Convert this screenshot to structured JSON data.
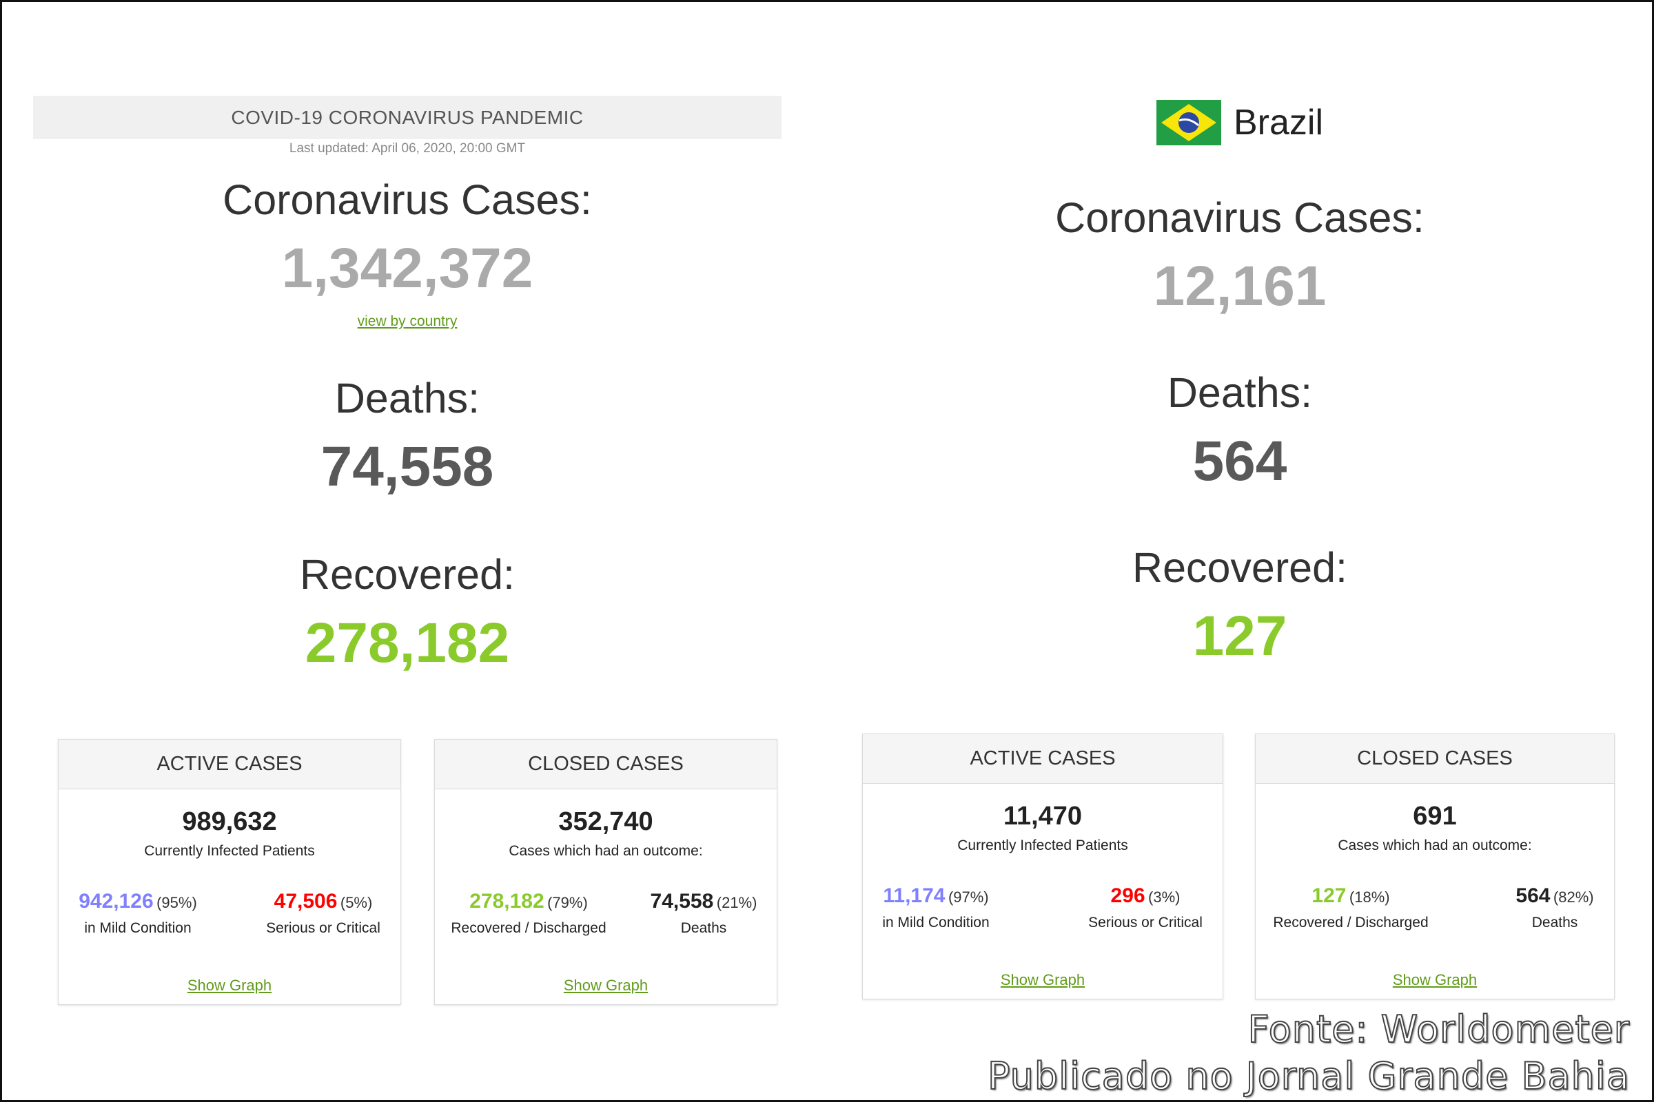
{
  "world": {
    "header": "COVID-19 CORONAVIRUS PANDEMIC",
    "last_updated": "Last updated: April 06, 2020, 20:00 GMT",
    "cases_label": "Coronavirus Cases:",
    "cases": "1,342,372",
    "view_by_country": "view by country",
    "deaths_label": "Deaths:",
    "deaths": "74,558",
    "recovered_label": "Recovered:",
    "recovered": "278,182",
    "active": {
      "title": "ACTIVE CASES",
      "total": "989,632",
      "subtitle": "Currently Infected Patients",
      "left": {
        "value": "942,126",
        "pct": "(95%)",
        "label": "in Mild Condition"
      },
      "right": {
        "value": "47,506",
        "pct": "(5%)",
        "label": "Serious or Critical"
      },
      "link": "Show Graph"
    },
    "closed": {
      "title": "CLOSED CASES",
      "total": "352,740",
      "subtitle": "Cases which had an outcome:",
      "left": {
        "value": "278,182",
        "pct": "(79%)",
        "label": "Recovered / Discharged"
      },
      "right": {
        "value": "74,558",
        "pct": "(21%)",
        "label": "Deaths"
      },
      "link": "Show Graph"
    }
  },
  "brazil": {
    "country": "Brazil",
    "flag_icon": "brazil-flag-icon",
    "cases_label": "Coronavirus Cases:",
    "cases": "12,161",
    "deaths_label": "Deaths:",
    "deaths": "564",
    "recovered_label": "Recovered:",
    "recovered": "127",
    "active": {
      "title": "ACTIVE CASES",
      "total": "11,470",
      "subtitle": "Currently Infected Patients",
      "left": {
        "value": "11,174",
        "pct": "(97%)",
        "label": "in Mild Condition"
      },
      "right": {
        "value": "296",
        "pct": "(3%)",
        "label": "Serious or Critical"
      },
      "link": "Show Graph"
    },
    "closed": {
      "title": "CLOSED CASES",
      "total": "691",
      "subtitle": "Cases which had an outcome:",
      "left": {
        "value": "127",
        "pct": "(18%)",
        "label": "Recovered / Discharged"
      },
      "right": {
        "value": "564",
        "pct": "(82%)",
        "label": "Deaths"
      },
      "link": "Show Graph"
    }
  },
  "source": {
    "line1": "Fonte: Worldometer",
    "line2": "Publicado no Jornal Grande Bahia"
  },
  "colors": {
    "cases": "#aaaaaa",
    "deaths": "#595959",
    "recovered": "#8ACA2B",
    "mild": "#8080FF",
    "serious": "#FF0000",
    "link": "#609c1a"
  }
}
